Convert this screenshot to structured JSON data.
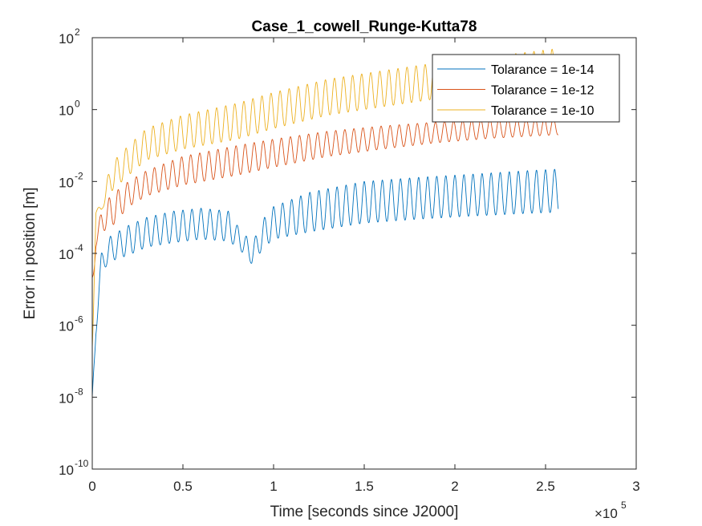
{
  "chart_data": {
    "type": "line",
    "title": "Case_1_cowell_Runge-Kutta78",
    "xlabel": "Time [seconds since J2000]",
    "ylabel": "Error in position [m]",
    "x_multiplier_label": "×10",
    "x_multiplier_exponent": "5",
    "xlim": [
      0,
      300000
    ],
    "ylim": [
      1e-10,
      100
    ],
    "yscale": "log",
    "grid": false,
    "legend_position": "top-right",
    "x_ticks": [
      {
        "value": 0,
        "label": "0"
      },
      {
        "value": 50000,
        "label": "0.5"
      },
      {
        "value": 100000,
        "label": "1"
      },
      {
        "value": 150000,
        "label": "1.5"
      },
      {
        "value": 200000,
        "label": "2"
      },
      {
        "value": 250000,
        "label": "2.5"
      },
      {
        "value": 300000,
        "label": "3"
      }
    ],
    "y_ticks": [
      {
        "value": 1e-10,
        "base": "10",
        "exp": "-10"
      },
      {
        "value": 1e-08,
        "base": "10",
        "exp": "-8"
      },
      {
        "value": 1e-06,
        "base": "10",
        "exp": "-6"
      },
      {
        "value": 0.0001,
        "base": "10",
        "exp": "-4"
      },
      {
        "value": 0.01,
        "base": "10",
        "exp": "-2"
      },
      {
        "value": 1,
        "base": "10",
        "exp": "0"
      },
      {
        "value": 100,
        "base": "10",
        "exp": "2"
      }
    ],
    "series": [
      {
        "name": "Tolarance = 1e-14",
        "color": "#0072BD",
        "x": [
          0,
          2000,
          5000,
          10000,
          20000,
          30000,
          45000,
          60000,
          75000,
          80000,
          85000,
          88000,
          90000,
          95000,
          100000,
          120000,
          150000,
          180000,
          210000,
          240000,
          257000
        ],
        "min": [
          2e-09,
          5e-07,
          3e-05,
          6e-05,
          9e-05,
          0.00015,
          0.0002,
          0.00025,
          0.00022,
          0.00015,
          8e-05,
          5e-05,
          7e-05,
          0.00015,
          0.00025,
          0.0004,
          0.0007,
          0.0009,
          0.0011,
          0.0013,
          0.0014
        ],
        "max": [
          1e-08,
          2e-06,
          0.0001,
          0.0003,
          0.0006,
          0.001,
          0.0015,
          0.0018,
          0.0015,
          0.0006,
          0.0003,
          0.00015,
          0.0003,
          0.001,
          0.002,
          0.005,
          0.01,
          0.013,
          0.016,
          0.02,
          0.022
        ]
      },
      {
        "name": "Tolarance = 1e-12",
        "color": "#D95319",
        "x": [
          0,
          2000,
          5000,
          10000,
          20000,
          30000,
          50000,
          80000,
          100000,
          130000,
          160000,
          190000,
          220000,
          257000
        ],
        "min": [
          5e-06,
          0.00015,
          0.0004,
          0.0005,
          0.002,
          0.004,
          0.008,
          0.015,
          0.025,
          0.05,
          0.08,
          0.12,
          0.16,
          0.2
        ],
        "max": [
          3e-05,
          0.0003,
          0.0015,
          0.004,
          0.01,
          0.02,
          0.05,
          0.1,
          0.15,
          0.25,
          0.35,
          0.45,
          0.55,
          0.6
        ]
      },
      {
        "name": "Tolarance = 1e-10",
        "color": "#EDB120",
        "x": [
          0,
          2000,
          5000,
          10000,
          20000,
          30000,
          50000,
          80000,
          100000,
          130000,
          160000,
          190000,
          220000,
          257000
        ],
        "min": [
          1e-07,
          0.0012,
          0.0015,
          0.005,
          0.015,
          0.04,
          0.08,
          0.15,
          0.3,
          0.7,
          1.2,
          2,
          3,
          4
        ],
        "max": [
          1e-06,
          0.0018,
          0.002,
          0.03,
          0.1,
          0.3,
          0.7,
          1.5,
          3,
          7,
          12.0,
          20.0,
          30.0,
          50.0
        ]
      }
    ]
  }
}
